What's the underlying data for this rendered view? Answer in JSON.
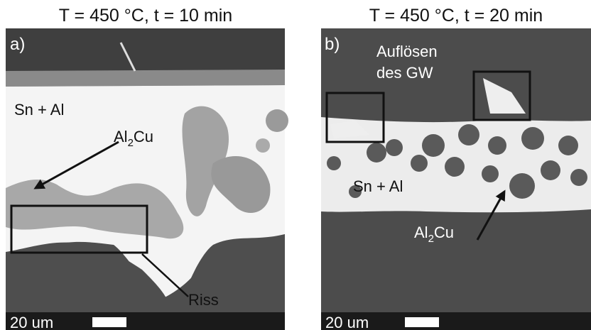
{
  "panels": [
    {
      "title": "T = 450 °C, t = 10 min",
      "label": "a)",
      "phase_label": "Sn + Al",
      "compound_label": [
        "Al",
        "2",
        "Cu"
      ],
      "crack_label": "Riss",
      "scale_text": "20 um"
    },
    {
      "title": "T = 450 °C, t = 20 min",
      "label": "b)",
      "dissolution_label": [
        "Auflösen",
        "des GW"
      ],
      "phase_label": "Sn + Al",
      "compound_label": [
        "Al",
        "2",
        "Cu"
      ],
      "scale_text": "20 um"
    }
  ]
}
